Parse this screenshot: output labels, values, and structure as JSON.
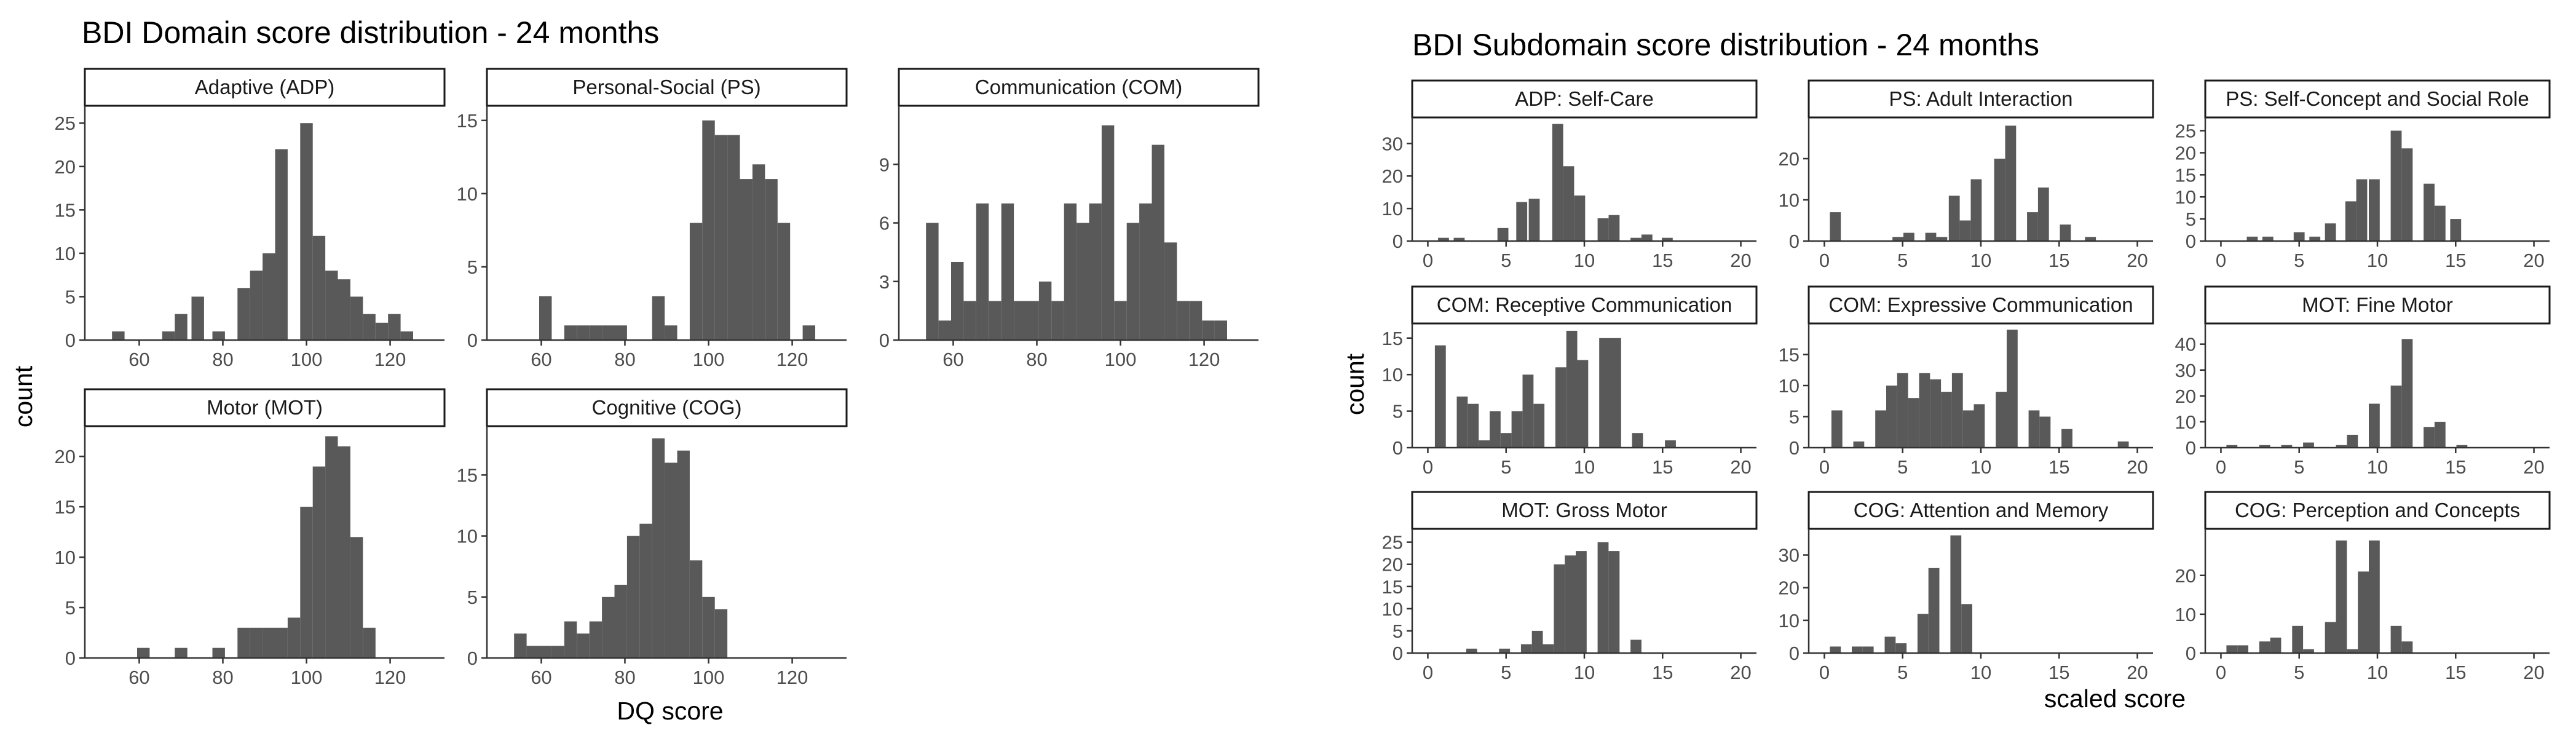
{
  "chart_data": [
    {
      "type": "bar",
      "title": "BDI Domain score distribution - 24 months",
      "xlabel": "DQ score",
      "ylabel": "count",
      "xlim": [
        47,
        133
      ],
      "xticks": [
        60,
        80,
        100,
        120
      ],
      "bin_width": 3,
      "grid": false,
      "panels": [
        {
          "name": "Adaptive (ADP)",
          "ylim": [
            0,
            27
          ],
          "yticks": [
            0,
            5,
            10,
            15,
            20,
            25
          ],
          "x": [
            55,
            67,
            70,
            74,
            79,
            85,
            88,
            91,
            94,
            97,
            100,
            103,
            106,
            109,
            112,
            115,
            118,
            121,
            124
          ],
          "values": [
            1,
            1,
            3,
            5,
            1,
            6,
            8,
            10,
            22,
            0,
            25,
            12,
            8,
            7,
            5,
            3,
            2,
            3,
            1
          ]
        },
        {
          "name": "Personal-Social (PS)",
          "ylim": [
            0,
            16
          ],
          "yticks": [
            0,
            5,
            10,
            15
          ],
          "x": [
            61,
            67,
            70,
            73,
            76,
            79,
            88,
            91,
            94,
            97,
            100,
            103,
            106,
            109,
            112,
            115,
            118,
            124
          ],
          "values": [
            3,
            1,
            1,
            1,
            1,
            1,
            3,
            1,
            0,
            8,
            15,
            14,
            14,
            11,
            12,
            11,
            8,
            1
          ]
        },
        {
          "name": "Communication (COM)",
          "ylim": [
            0,
            12
          ],
          "yticks": [
            0,
            3,
            6,
            9
          ],
          "x": [
            55,
            58,
            61,
            64,
            67,
            70,
            73,
            76,
            79,
            82,
            85,
            88,
            91,
            94,
            97,
            100,
            103,
            106,
            109,
            112,
            115,
            118,
            121,
            124
          ],
          "values": [
            6,
            1,
            4,
            2,
            7,
            2,
            7,
            2,
            2,
            3,
            2,
            7,
            6,
            7,
            11,
            2,
            6,
            7,
            10,
            5,
            2,
            2,
            1,
            1
          ]
        },
        {
          "name": "Motor (MOT)",
          "ylim": [
            0,
            23
          ],
          "yticks": [
            0,
            5,
            10,
            15,
            20
          ],
          "x": [
            61,
            70,
            79,
            85,
            88,
            91,
            94,
            97,
            100,
            103,
            106,
            109,
            112,
            115
          ],
          "values": [
            1,
            1,
            1,
            3,
            3,
            3,
            3,
            4,
            15,
            19,
            22,
            21,
            12,
            3
          ]
        },
        {
          "name": "Cognitive (COG)",
          "ylim": [
            0,
            19
          ],
          "yticks": [
            0,
            5,
            10,
            15
          ],
          "x": [
            55,
            58,
            61,
            64,
            67,
            70,
            73,
            76,
            79,
            82,
            85,
            88,
            91,
            94,
            97,
            100,
            103
          ],
          "values": [
            2,
            1,
            1,
            1,
            3,
            2,
            3,
            5,
            6,
            10,
            11,
            18,
            16,
            17,
            8,
            5,
            4
          ]
        }
      ]
    },
    {
      "type": "bar",
      "title": "BDI Subdomain score distribution - 24 months",
      "xlabel": "scaled score",
      "ylabel": "count",
      "xlim": [
        -1,
        21
      ],
      "xticks": [
        0,
        5,
        10,
        15,
        20
      ],
      "bin_width": 0.7,
      "grid": false,
      "panels": [
        {
          "name": "ADP: Self-Care",
          "ylim": [
            0,
            38
          ],
          "yticks": [
            0,
            10,
            20,
            30
          ],
          "x": [
            1,
            2,
            4.8,
            6,
            6.8,
            8.3,
            9,
            9.7,
            11.2,
            11.9,
            13.3,
            14,
            15.3
          ],
          "values": [
            1,
            1,
            4,
            12,
            13,
            36,
            23,
            14,
            7,
            8,
            1,
            2,
            1
          ]
        },
        {
          "name": "PS: Adult Interaction",
          "ylim": [
            0,
            30
          ],
          "yticks": [
            0,
            10,
            20
          ],
          "x": [
            0.7,
            4.7,
            5.4,
            6.8,
            7.5,
            8.3,
            9,
            9.7,
            11.2,
            11.9,
            13.3,
            14,
            15.4,
            17
          ],
          "values": [
            7,
            1,
            2,
            2,
            1,
            11,
            5,
            15,
            20,
            28,
            7,
            13,
            4,
            1
          ]
        },
        {
          "name": "PS: Self-Concept and Social Role",
          "ylim": [
            0,
            28
          ],
          "yticks": [
            0,
            5,
            10,
            15,
            20,
            25
          ],
          "x": [
            2,
            3,
            5,
            6,
            7,
            8.3,
            9,
            9.8,
            11.2,
            11.9,
            13.3,
            14,
            15
          ],
          "values": [
            1,
            1,
            2,
            1,
            4,
            9,
            14,
            14,
            25,
            21,
            13,
            8,
            5
          ]
        },
        {
          "name": "COM: Receptive Communication",
          "ylim": [
            0,
            17
          ],
          "yticks": [
            0,
            5,
            10,
            15
          ],
          "x": [
            0.8,
            2.2,
            2.9,
            3.6,
            4.3,
            5,
            5.7,
            6.4,
            7.1,
            8.5,
            9.2,
            9.9,
            11.3,
            12,
            13.4,
            15.5
          ],
          "values": [
            14,
            7,
            6,
            1,
            5,
            2,
            5,
            10,
            6,
            11,
            16,
            12,
            15,
            15,
            2,
            1
          ]
        },
        {
          "name": "COM: Expressive Communication",
          "ylim": [
            0,
            20
          ],
          "yticks": [
            0,
            5,
            10,
            15
          ],
          "x": [
            0.8,
            2.2,
            3.6,
            4.3,
            5,
            5.7,
            6.4,
            7.1,
            7.8,
            8.5,
            9.2,
            9.9,
            11.3,
            12,
            13.4,
            14.1,
            15.5,
            19.1
          ],
          "values": [
            6,
            1,
            6,
            10,
            12,
            8,
            12,
            11,
            9,
            12,
            6,
            7,
            9,
            19,
            6,
            5,
            3,
            1
          ]
        },
        {
          "name": "MOT: Fine Motor",
          "ylim": [
            0,
            48
          ],
          "yticks": [
            0,
            10,
            20,
            30,
            40
          ],
          "x": [
            0.7,
            2.8,
            4.2,
            5.6,
            7.7,
            8.4,
            9.8,
            11.2,
            11.9,
            13.3,
            14,
            15.4
          ],
          "values": [
            1,
            1,
            1,
            2,
            1,
            5,
            17,
            24,
            42,
            8,
            10,
            1
          ]
        },
        {
          "name": "MOT: Gross Motor",
          "ylim": [
            0,
            28
          ],
          "yticks": [
            0,
            5,
            10,
            15,
            20,
            25
          ],
          "x": [
            2.8,
            4.9,
            6.3,
            7,
            7.7,
            8.4,
            9.1,
            9.8,
            11.2,
            11.9,
            13.3
          ],
          "values": [
            1,
            1,
            2,
            5,
            2,
            20,
            22,
            23,
            25,
            23,
            3
          ]
        },
        {
          "name": "COG: Attention and Memory",
          "ylim": [
            0,
            38
          ],
          "yticks": [
            0,
            10,
            20,
            30
          ],
          "x": [
            0.7,
            2.1,
            2.8,
            4.2,
            4.9,
            6.3,
            7,
            8.4,
            9.1
          ],
          "values": [
            2,
            2,
            2,
            5,
            3,
            12,
            26,
            36,
            15
          ]
        },
        {
          "name": "COG: Perception and Concepts",
          "ylim": [
            0,
            32
          ],
          "yticks": [
            0,
            10,
            20
          ],
          "x": [
            0.7,
            1.4,
            2.8,
            3.5,
            4.9,
            5.6,
            7,
            7.7,
            8.4,
            9.1,
            9.8,
            11.2,
            11.9
          ],
          "values": [
            2,
            2,
            3,
            4,
            7,
            1,
            8,
            29,
            1,
            21,
            29,
            7,
            3
          ]
        }
      ]
    }
  ]
}
